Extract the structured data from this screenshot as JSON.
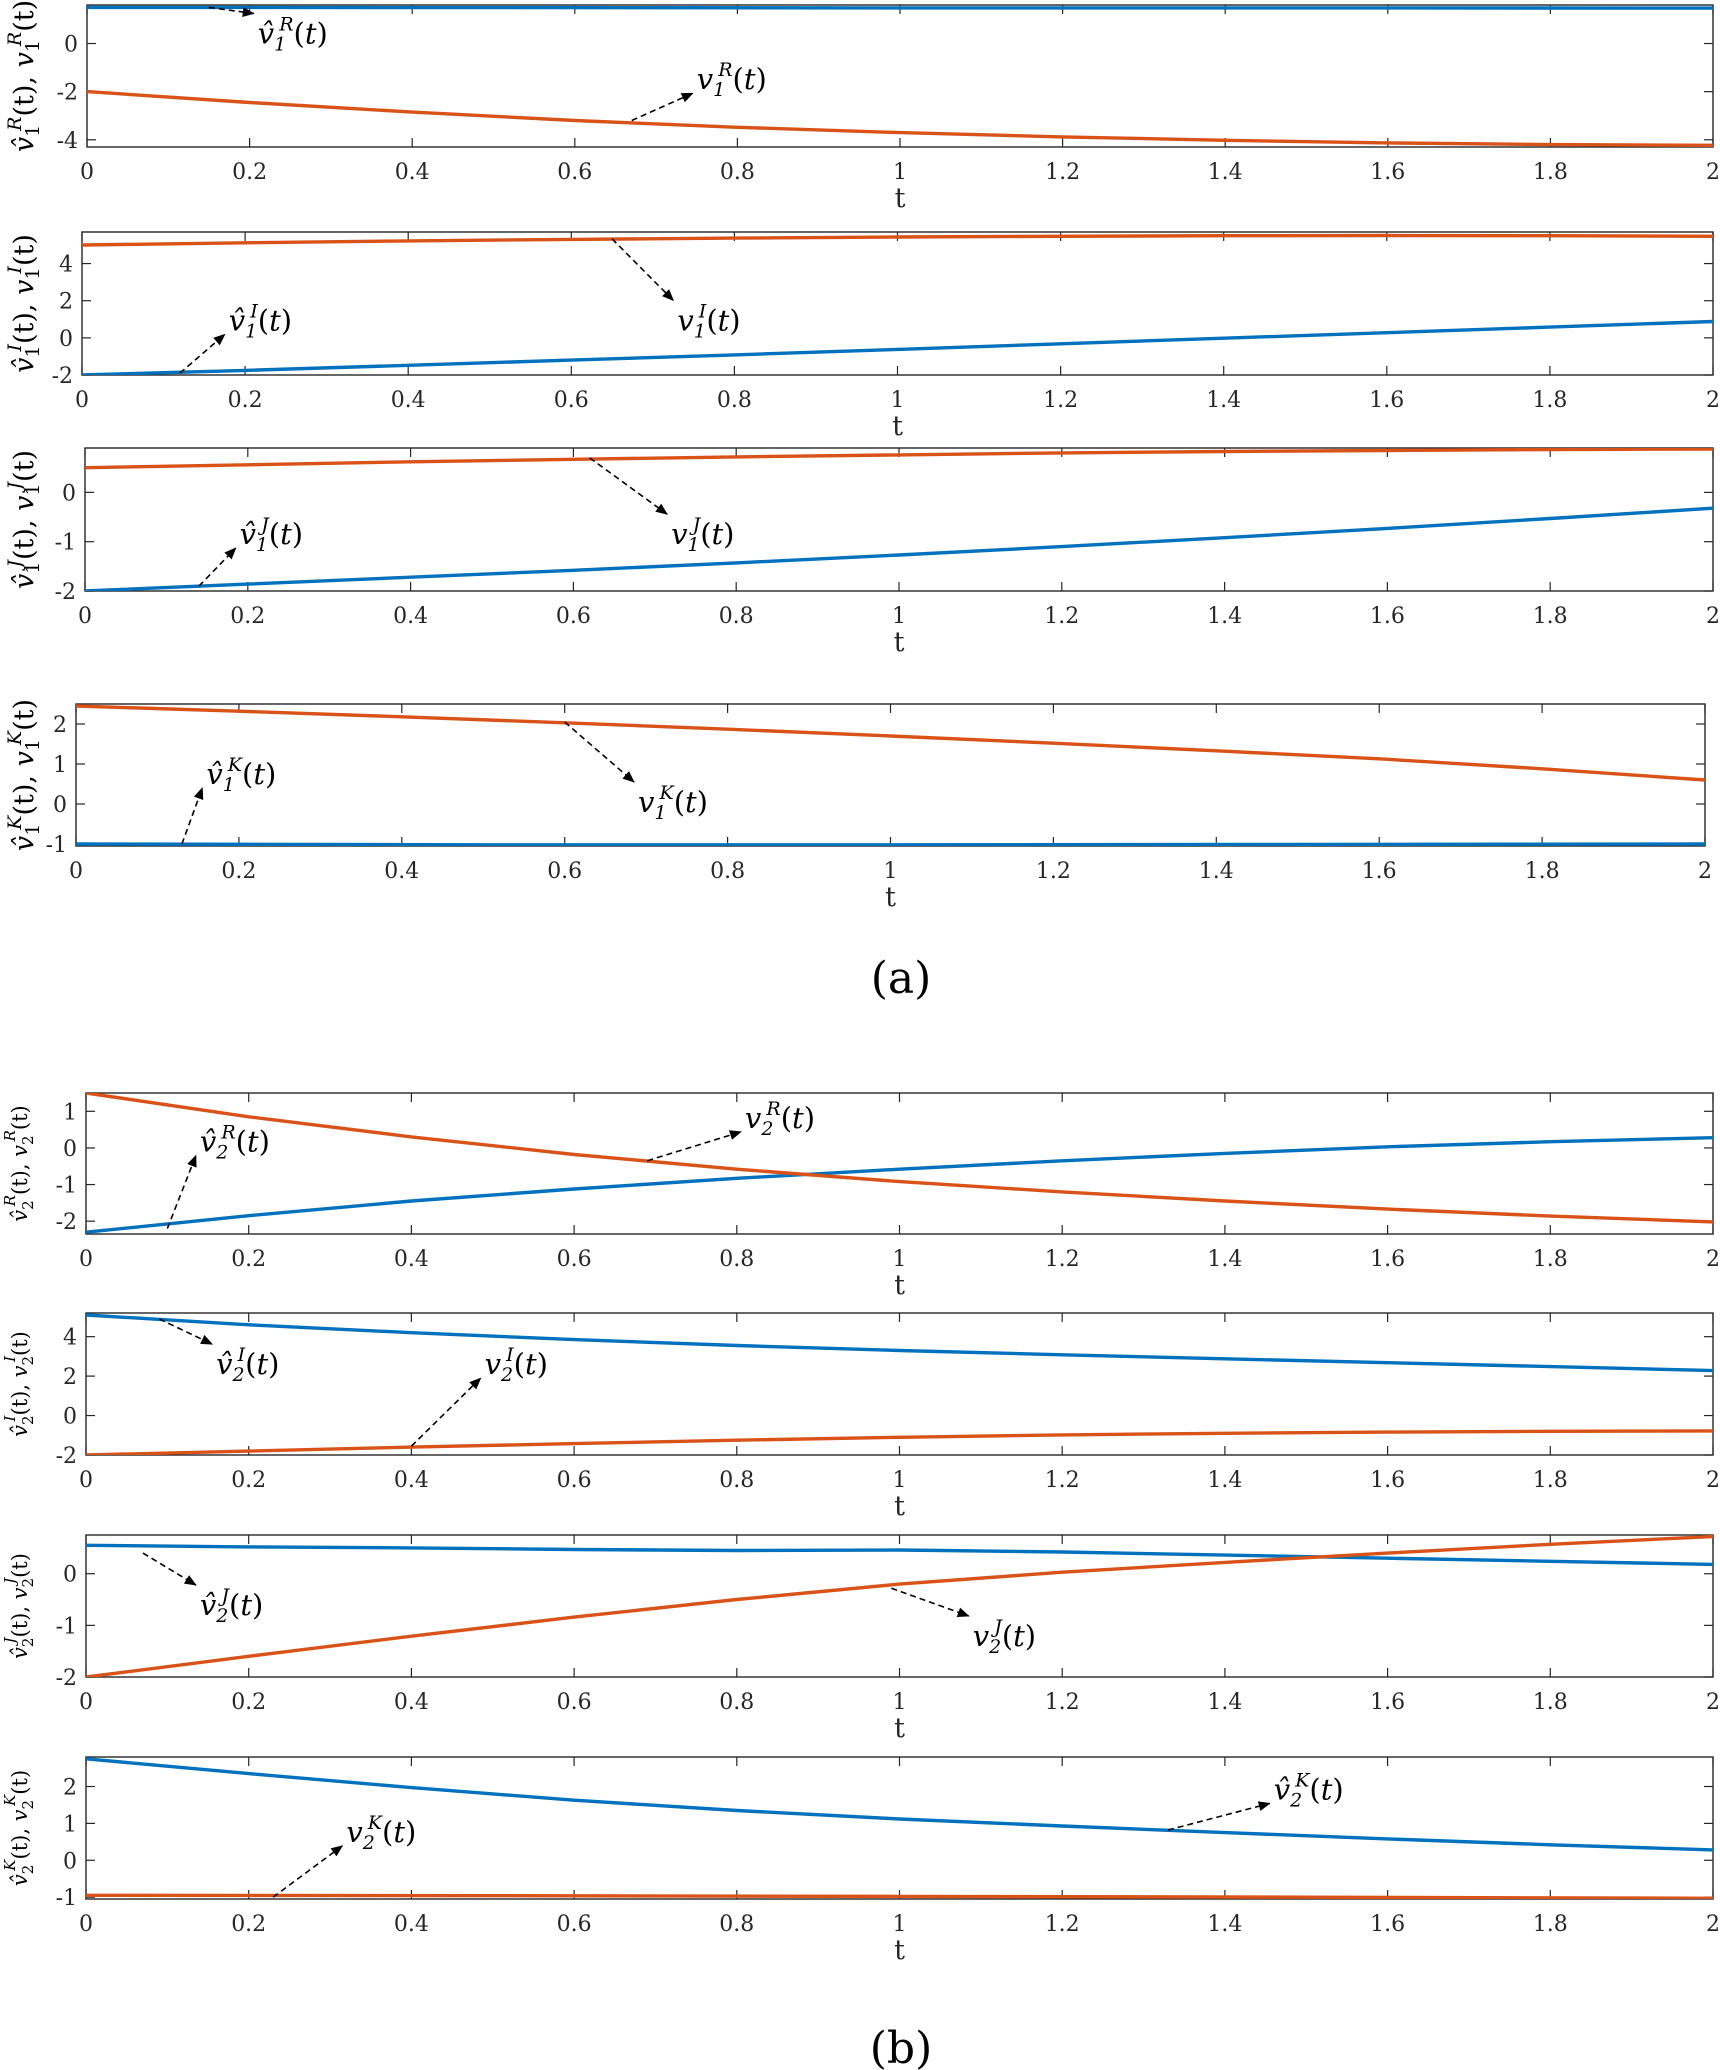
{
  "colors": {
    "estimate": "#0072BD",
    "true": "#D95319",
    "axis": "#262626",
    "annotation": "#000000"
  },
  "captions": [
    "(a)",
    "(b)"
  ],
  "chart_data": [
    {
      "type": "line",
      "group": "(a)",
      "title": "",
      "xlabel": "t",
      "ylabel": {
        "hat": "v",
        "sub": "1",
        "sup": "R",
        "var": "v",
        "var_sub": "1",
        "var_sup": "R"
      },
      "xlim": [
        0,
        2
      ],
      "ylim": [
        -4.3,
        1.6
      ],
      "xticks": [
        0,
        0.2,
        0.4,
        0.6,
        0.8,
        1,
        1.2,
        1.4,
        1.6,
        1.8,
        2
      ],
      "yticks": [
        -4,
        -2,
        0
      ],
      "grid": false,
      "legend": "none",
      "series": [
        {
          "color": "estimate",
          "x": [
            0,
            0.5,
            1,
            1.5,
            2
          ],
          "y": [
            1.5,
            1.49,
            1.48,
            1.48,
            1.47
          ]
        },
        {
          "color": "true",
          "x": [
            0,
            0.2,
            0.4,
            0.6,
            0.8,
            1,
            1.2,
            1.4,
            1.6,
            1.8,
            2
          ],
          "y": [
            -2.0,
            -2.45,
            -2.85,
            -3.2,
            -3.48,
            -3.7,
            -3.88,
            -4.02,
            -4.13,
            -4.2,
            -4.23
          ]
        }
      ],
      "annotations": [
        {
          "hat": true,
          "base": "v",
          "sub": "1",
          "sup": "R",
          "arrow": "down",
          "anchor": [
            0.15,
            1.5
          ],
          "label": [
            0.21,
            0.0
          ]
        },
        {
          "hat": false,
          "base": "v",
          "sub": "1",
          "sup": "R",
          "arrow": "up",
          "anchor": [
            0.67,
            -3.2
          ],
          "label": [
            0.75,
            -1.9
          ]
        }
      ]
    },
    {
      "type": "line",
      "group": "(a)",
      "title": "",
      "xlabel": "t",
      "ylabel": {
        "hat": "v",
        "sub": "1",
        "sup": "I",
        "var": "v",
        "var_sub": "1",
        "var_sup": "I"
      },
      "xlim": [
        0,
        2
      ],
      "ylim": [
        -2,
        5.7
      ],
      "xticks": [
        0,
        0.2,
        0.4,
        0.6,
        0.8,
        1,
        1.2,
        1.4,
        1.6,
        1.8,
        2
      ],
      "yticks": [
        -2,
        0,
        2,
        4
      ],
      "grid": false,
      "legend": "none",
      "series": [
        {
          "color": "estimate",
          "x": [
            0,
            0.2,
            0.4,
            0.6,
            0.8,
            1,
            1.2,
            1.4,
            1.6,
            1.8,
            2
          ],
          "y": [
            -2.0,
            -1.75,
            -1.48,
            -1.2,
            -0.92,
            -0.62,
            -0.32,
            -0.02,
            0.28,
            0.58,
            0.88
          ]
        },
        {
          "color": "true",
          "x": [
            0,
            0.2,
            0.4,
            0.6,
            0.8,
            1,
            1.2,
            1.4,
            1.6,
            1.8,
            2
          ],
          "y": [
            5.0,
            5.12,
            5.22,
            5.3,
            5.37,
            5.43,
            5.47,
            5.5,
            5.51,
            5.5,
            5.47
          ]
        }
      ],
      "annotations": [
        {
          "hat": true,
          "base": "v",
          "sub": "1",
          "sup": "I",
          "arrow": "up",
          "anchor": [
            0.12,
            -1.9
          ],
          "label": [
            0.18,
            0.4
          ]
        },
        {
          "hat": false,
          "base": "v",
          "sub": "1",
          "sup": "I",
          "arrow": "down",
          "anchor": [
            0.65,
            5.33
          ],
          "label": [
            0.73,
            0.4
          ]
        }
      ]
    },
    {
      "type": "line",
      "group": "(a)",
      "title": "",
      "xlabel": "t",
      "ylabel": {
        "hat": "v",
        "sub": "1",
        "sup": "J",
        "var": "v",
        "var_sub": "1",
        "var_sup": "J"
      },
      "xlim": [
        0,
        2
      ],
      "ylim": [
        -2,
        0.9
      ],
      "xticks": [
        0,
        0.2,
        0.4,
        0.6,
        0.8,
        1,
        1.2,
        1.4,
        1.6,
        1.8,
        2
      ],
      "yticks": [
        -2,
        -1,
        0
      ],
      "grid": false,
      "legend": "none",
      "series": [
        {
          "color": "estimate",
          "x": [
            0,
            0.2,
            0.4,
            0.6,
            0.8,
            1,
            1.2,
            1.4,
            1.6,
            1.8,
            2
          ],
          "y": [
            -2.0,
            -1.86,
            -1.72,
            -1.58,
            -1.43,
            -1.27,
            -1.1,
            -0.92,
            -0.73,
            -0.53,
            -0.32
          ]
        },
        {
          "color": "true",
          "x": [
            0,
            0.2,
            0.4,
            0.6,
            0.8,
            1,
            1.2,
            1.4,
            1.6,
            1.8,
            2
          ],
          "y": [
            0.5,
            0.56,
            0.62,
            0.67,
            0.72,
            0.76,
            0.8,
            0.83,
            0.85,
            0.87,
            0.88
          ]
        }
      ],
      "annotations": [
        {
          "hat": true,
          "base": "v",
          "sub": "1",
          "sup": "J",
          "arrow": "up",
          "anchor": [
            0.14,
            -1.9
          ],
          "label": [
            0.19,
            -1.05
          ]
        },
        {
          "hat": false,
          "base": "v",
          "sub": "1",
          "sup": "J",
          "arrow": "down",
          "anchor": [
            0.62,
            0.7
          ],
          "label": [
            0.72,
            -1.05
          ]
        }
      ]
    },
    {
      "type": "line",
      "group": "(a)",
      "title": "",
      "xlabel": "t",
      "ylabel": {
        "hat": "v",
        "sub": "1",
        "sup": "K",
        "var": "v",
        "var_sub": "1",
        "var_sup": "K"
      },
      "xlim": [
        0,
        2
      ],
      "ylim": [
        -1.05,
        2.5
      ],
      "xticks": [
        0,
        0.2,
        0.4,
        0.6,
        0.8,
        1,
        1.2,
        1.4,
        1.6,
        1.8,
        2
      ],
      "yticks": [
        -1,
        0,
        1,
        2
      ],
      "grid": false,
      "legend": "none",
      "series": [
        {
          "color": "estimate",
          "x": [
            0,
            0.5,
            1,
            1.5,
            2
          ],
          "y": [
            -1.0,
            -1.02,
            -1.02,
            -1.01,
            -1.0
          ]
        },
        {
          "color": "true",
          "x": [
            0,
            0.2,
            0.4,
            0.6,
            0.8,
            1,
            1.2,
            1.4,
            1.6,
            1.8,
            2
          ],
          "y": [
            2.45,
            2.32,
            2.18,
            2.03,
            1.87,
            1.7,
            1.52,
            1.33,
            1.13,
            0.88,
            0.6
          ]
        }
      ],
      "annotations": [
        {
          "hat": true,
          "base": "v",
          "sub": "1",
          "sup": "K",
          "arrow": "up",
          "anchor": [
            0.13,
            -1.0
          ],
          "label": [
            0.16,
            0.5
          ]
        },
        {
          "hat": false,
          "base": "v",
          "sub": "1",
          "sup": "K",
          "arrow": "down",
          "anchor": [
            0.6,
            2.05
          ],
          "label": [
            0.69,
            -0.2
          ]
        }
      ]
    },
    {
      "type": "line",
      "group": "(b)",
      "title": "",
      "xlabel": "t",
      "ylabel": {
        "hat": "v",
        "sub": "2",
        "sup": "R",
        "var": "v",
        "var_sub": "2",
        "var_sup": "R"
      },
      "xlim": [
        0,
        2
      ],
      "ylim": [
        -2.35,
        1.5
      ],
      "xticks": [
        0,
        0.2,
        0.4,
        0.6,
        0.8,
        1,
        1.2,
        1.4,
        1.6,
        1.8,
        2
      ],
      "yticks": [
        -2,
        -1,
        0,
        1
      ],
      "grid": false,
      "legend": "none",
      "series": [
        {
          "color": "estimate",
          "x": [
            0,
            0.2,
            0.4,
            0.6,
            0.8,
            1,
            1.2,
            1.4,
            1.6,
            1.8,
            2
          ],
          "y": [
            -2.3,
            -1.85,
            -1.45,
            -1.12,
            -0.83,
            -0.58,
            -0.35,
            -0.15,
            0.03,
            0.17,
            0.28
          ]
        },
        {
          "color": "true",
          "x": [
            0,
            0.2,
            0.4,
            0.6,
            0.8,
            1,
            1.2,
            1.4,
            1.6,
            1.8,
            2
          ],
          "y": [
            1.5,
            0.85,
            0.3,
            -0.18,
            -0.58,
            -0.92,
            -1.2,
            -1.45,
            -1.67,
            -1.86,
            -2.02
          ]
        }
      ],
      "annotations": [
        {
          "hat": true,
          "base": "v",
          "sub": "2",
          "sup": "R",
          "arrow": "up",
          "anchor": [
            0.1,
            -2.2
          ],
          "label": [
            0.14,
            -0.1
          ]
        },
        {
          "hat": false,
          "base": "v",
          "sub": "2",
          "sup": "R",
          "arrow": "up",
          "anchor": [
            0.69,
            -0.35
          ],
          "label": [
            0.81,
            0.55
          ]
        }
      ]
    },
    {
      "type": "line",
      "group": "(b)",
      "title": "",
      "xlabel": "t",
      "ylabel": {
        "hat": "v",
        "sub": "2",
        "sup": "I",
        "var": "v",
        "var_sub": "2",
        "var_sup": "I"
      },
      "xlim": [
        0,
        2
      ],
      "ylim": [
        -2,
        5.2
      ],
      "xticks": [
        0,
        0.2,
        0.4,
        0.6,
        0.8,
        1,
        1.2,
        1.4,
        1.6,
        1.8,
        2
      ],
      "yticks": [
        -2,
        0,
        2,
        4
      ],
      "grid": false,
      "legend": "none",
      "series": [
        {
          "color": "estimate",
          "x": [
            0,
            0.2,
            0.4,
            0.6,
            0.8,
            1,
            1.2,
            1.4,
            1.6,
            1.8,
            2
          ],
          "y": [
            5.1,
            4.6,
            4.2,
            3.85,
            3.55,
            3.3,
            3.08,
            2.88,
            2.68,
            2.48,
            2.28
          ]
        },
        {
          "color": "true",
          "x": [
            0,
            0.2,
            0.4,
            0.6,
            0.8,
            1,
            1.2,
            1.4,
            1.6,
            1.8,
            2
          ],
          "y": [
            -2.0,
            -1.8,
            -1.6,
            -1.42,
            -1.25,
            -1.1,
            -0.98,
            -0.9,
            -0.84,
            -0.8,
            -0.78
          ]
        }
      ],
      "annotations": [
        {
          "hat": true,
          "base": "v",
          "sub": "2",
          "sup": "I",
          "arrow": "down",
          "anchor": [
            0.09,
            4.9
          ],
          "label": [
            0.16,
            2.1
          ]
        },
        {
          "hat": false,
          "base": "v",
          "sub": "2",
          "sup": "I",
          "arrow": "up",
          "anchor": [
            0.4,
            -1.55
          ],
          "label": [
            0.49,
            2.1
          ]
        }
      ]
    },
    {
      "type": "line",
      "group": "(b)",
      "title": "",
      "xlabel": "t",
      "ylabel": {
        "hat": "v",
        "sub": "2",
        "sup": "J",
        "var": "v",
        "var_sub": "2",
        "var_sup": "J"
      },
      "xlim": [
        0,
        2
      ],
      "ylim": [
        -2,
        0.75
      ],
      "xticks": [
        0,
        0.2,
        0.4,
        0.6,
        0.8,
        1,
        1.2,
        1.4,
        1.6,
        1.8,
        2
      ],
      "yticks": [
        -2,
        -1,
        0
      ],
      "grid": false,
      "legend": "none",
      "series": [
        {
          "color": "estimate",
          "x": [
            0,
            0.2,
            0.4,
            0.6,
            0.8,
            1,
            1.2,
            1.4,
            1.6,
            1.8,
            2
          ],
          "y": [
            0.55,
            0.52,
            0.5,
            0.47,
            0.45,
            0.46,
            0.42,
            0.36,
            0.3,
            0.24,
            0.18
          ]
        },
        {
          "color": "true",
          "x": [
            0,
            0.2,
            0.4,
            0.6,
            0.8,
            1,
            1.2,
            1.4,
            1.6,
            1.8,
            2
          ],
          "y": [
            -2.0,
            -1.6,
            -1.21,
            -0.84,
            -0.5,
            -0.2,
            0.03,
            0.22,
            0.4,
            0.57,
            0.72
          ]
        }
      ],
      "annotations": [
        {
          "hat": true,
          "base": "v",
          "sub": "2",
          "sup": "J",
          "arrow": "down",
          "anchor": [
            0.07,
            0.4
          ],
          "label": [
            0.14,
            -0.8
          ]
        },
        {
          "hat": false,
          "base": "v",
          "sub": "2",
          "sup": "J",
          "arrow": "down",
          "anchor": [
            0.99,
            -0.28
          ],
          "label": [
            1.09,
            -1.4
          ]
        }
      ]
    },
    {
      "type": "line",
      "group": "(b)",
      "title": "",
      "xlabel": "t",
      "ylabel": {
        "hat": "v",
        "sub": "2",
        "sup": "K",
        "var": "v",
        "var_sub": "2",
        "var_sup": "K"
      },
      "xlim": [
        0,
        2
      ],
      "ylim": [
        -1.05,
        2.8
      ],
      "xticks": [
        0,
        0.2,
        0.4,
        0.6,
        0.8,
        1,
        1.2,
        1.4,
        1.6,
        1.8,
        2
      ],
      "yticks": [
        -1,
        0,
        1,
        2
      ],
      "grid": false,
      "legend": "none",
      "series": [
        {
          "color": "estimate",
          "x": [
            0,
            0.2,
            0.4,
            0.6,
            0.8,
            1,
            1.2,
            1.4,
            1.6,
            1.8,
            2
          ],
          "y": [
            2.75,
            2.35,
            1.97,
            1.63,
            1.35,
            1.12,
            0.93,
            0.75,
            0.58,
            0.42,
            0.28
          ]
        },
        {
          "color": "true",
          "x": [
            0,
            0.5,
            1,
            1.5,
            2
          ],
          "y": [
            -0.95,
            -0.96,
            -0.98,
            -1.0,
            -1.03
          ]
        }
      ],
      "annotations": [
        {
          "hat": true,
          "base": "v",
          "sub": "2",
          "sup": "K",
          "arrow": "up",
          "anchor": [
            1.33,
            0.82
          ],
          "label": [
            1.46,
            1.65
          ]
        },
        {
          "hat": false,
          "base": "v",
          "sub": "2",
          "sup": "K",
          "arrow": "up",
          "anchor": [
            0.23,
            -1.0
          ],
          "label": [
            0.32,
            0.5
          ]
        }
      ]
    }
  ]
}
